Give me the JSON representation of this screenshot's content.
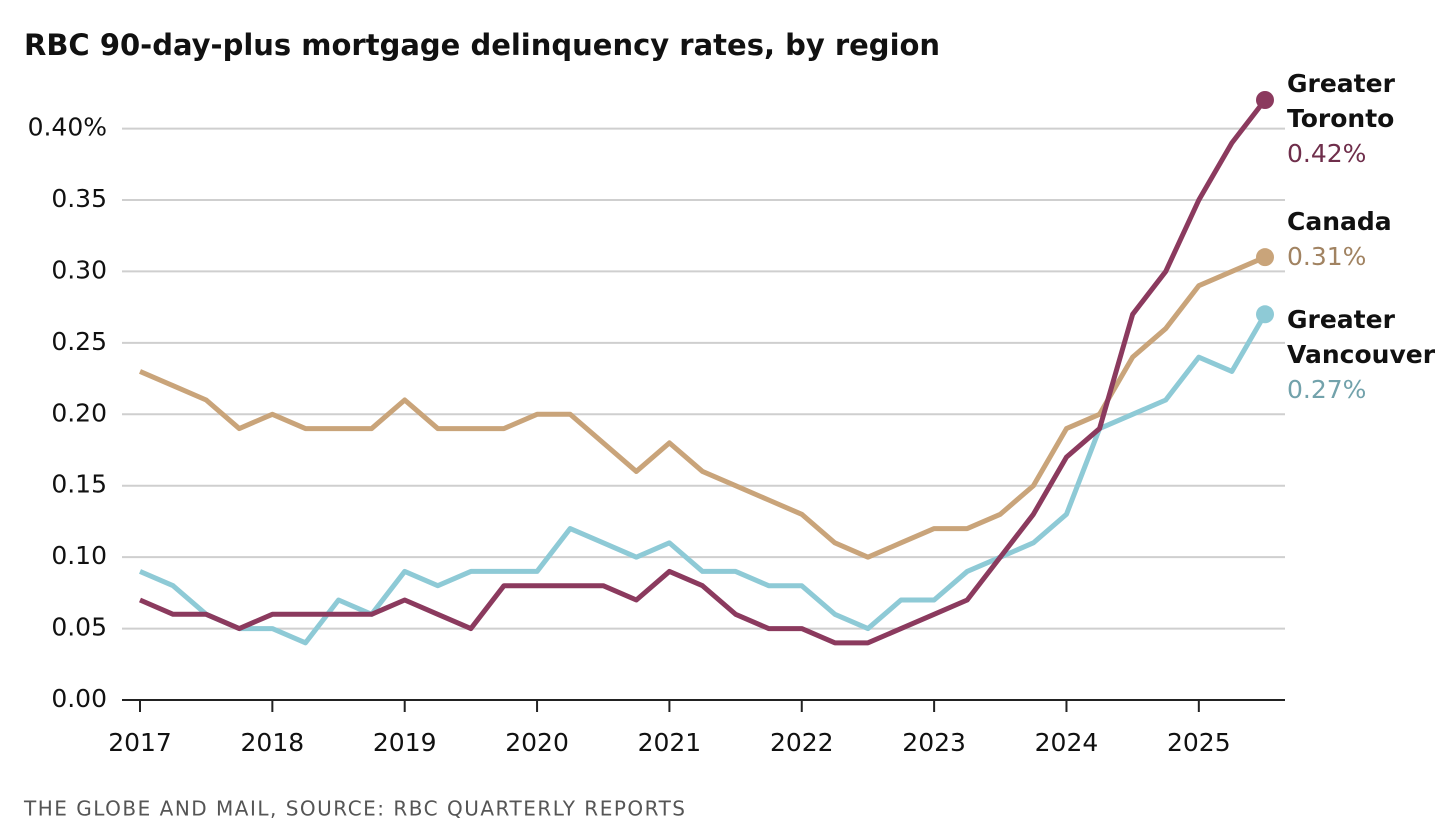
{
  "chart_data": {
    "type": "line",
    "title": "RBC 90-day-plus mortgage delinquency rates, by region",
    "source": "THE GLOBE AND MAIL, SOURCE: RBC QUARTERLY REPORTS",
    "x": [
      2017,
      2017.25,
      2017.5,
      2017.75,
      2018,
      2018.25,
      2018.5,
      2018.75,
      2019,
      2019.25,
      2019.5,
      2019.75,
      2020,
      2020.25,
      2020.5,
      2020.75,
      2021,
      2021.25,
      2021.5,
      2021.75,
      2022,
      2022.25,
      2022.5,
      2022.75,
      2023,
      2023.25,
      2023.5,
      2023.75,
      2024,
      2024.25,
      2024.5,
      2024.75,
      2025,
      2025.25,
      2025.5
    ],
    "xlim": [
      2016.87,
      2025.6
    ],
    "xticks": [
      2017,
      2018,
      2019,
      2020,
      2021,
      2022,
      2023,
      2024,
      2025
    ],
    "ylim": [
      0,
      0.42
    ],
    "yticks": [
      {
        "value": 0,
        "label": "0.00"
      },
      {
        "value": 0.05,
        "label": "0.05"
      },
      {
        "value": 0.1,
        "label": "0.10"
      },
      {
        "value": 0.15,
        "label": "0.15"
      },
      {
        "value": 0.2,
        "label": "0.20"
      },
      {
        "value": 0.25,
        "label": "0.25"
      },
      {
        "value": 0.3,
        "label": "0.30"
      },
      {
        "value": 0.35,
        "label": "0.35"
      },
      {
        "value": 0.4,
        "label": "0.40%"
      }
    ],
    "grid": true,
    "series": [
      {
        "name": "Canada",
        "color": "#c9a47a",
        "values": [
          0.23,
          0.22,
          0.21,
          0.19,
          0.2,
          0.19,
          0.19,
          0.19,
          0.21,
          0.19,
          0.19,
          0.19,
          0.2,
          0.2,
          0.18,
          0.16,
          0.18,
          0.16,
          0.15,
          0.14,
          0.13,
          0.11,
          0.1,
          0.11,
          0.12,
          0.12,
          0.13,
          0.15,
          0.19,
          0.2,
          0.24,
          0.26,
          0.29,
          0.3,
          0.31
        ],
        "value_labels": {
          "34": "0.31%"
        }
      },
      {
        "name": "Greater Vancouver",
        "color": "#8ecad6",
        "values": [
          0.09,
          0.08,
          0.06,
          0.05,
          0.05,
          0.04,
          0.07,
          0.06,
          0.09,
          0.08,
          0.09,
          0.09,
          0.09,
          0.12,
          0.11,
          0.1,
          0.11,
          0.09,
          0.09,
          0.08,
          0.08,
          0.06,
          0.05,
          0.07,
          0.07,
          0.09,
          0.1,
          0.11,
          0.13,
          0.19,
          0.2,
          0.21,
          0.24,
          0.23,
          0.27
        ],
        "value_labels": {
          "34": "0.27%"
        }
      },
      {
        "name": "Greater Toronto",
        "color": "#8b3a5e",
        "values": [
          0.07,
          0.06,
          0.06,
          0.05,
          0.06,
          0.06,
          0.06,
          0.06,
          0.07,
          0.06,
          0.05,
          0.08,
          0.08,
          0.08,
          0.08,
          0.07,
          0.09,
          0.08,
          0.06,
          0.05,
          0.05,
          0.04,
          0.04,
          0.05,
          0.06,
          0.07,
          0.1,
          0.13,
          0.17,
          0.19,
          0.27,
          0.3,
          0.35,
          0.39,
          0.42
        ],
        "value_labels": {
          "34": "0.42%"
        }
      }
    ]
  }
}
